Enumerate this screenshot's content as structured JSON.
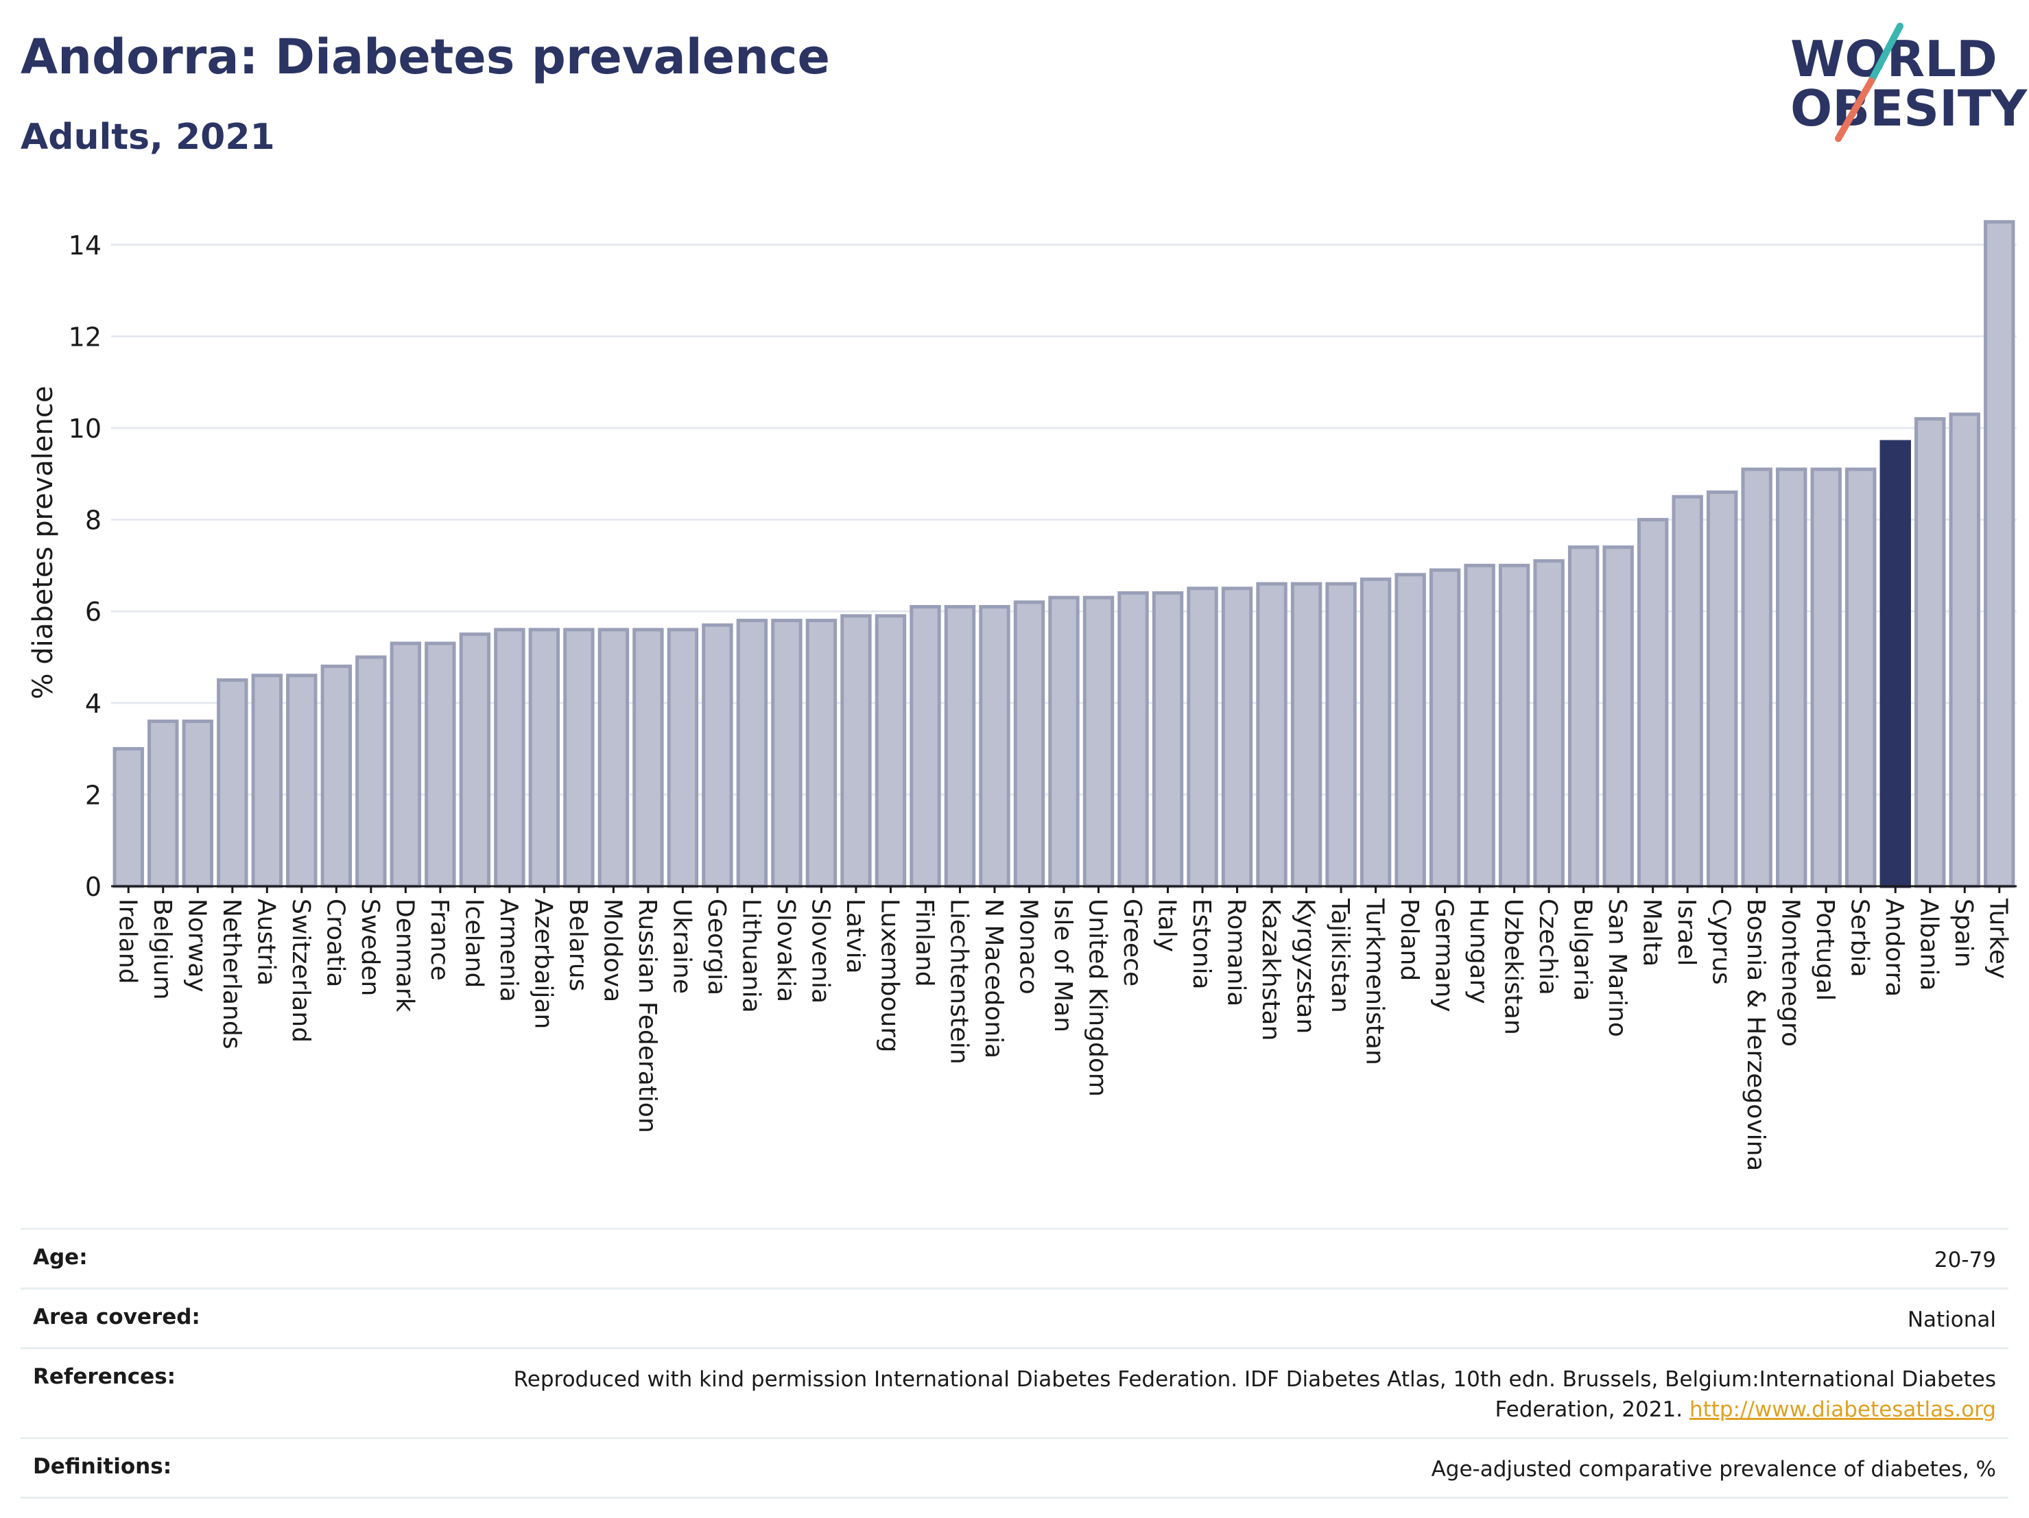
{
  "header": {
    "title": "Andorra: Diabetes prevalence",
    "subtitle": "Adults, 2021"
  },
  "logo": {
    "line1": "WORLD",
    "line2": "OBESITY",
    "accent_teal": "#3ab5b0",
    "accent_coral": "#e8735a",
    "text_color": "#2b3463"
  },
  "chart_data": {
    "type": "bar",
    "title": "Andorra: Diabetes prevalence",
    "subtitle": "Adults, 2021",
    "ylabel": "% diabetes prevalence",
    "xlabel": "",
    "ylim": [
      0,
      15
    ],
    "yticks": [
      0,
      2,
      4,
      6,
      8,
      10,
      12,
      14
    ],
    "grid": true,
    "highlight": "Andorra",
    "colors": {
      "bar": "#bcc0d0",
      "bar_edge": "#9a9fb8",
      "highlight": "#2b3463",
      "grid": "#e6e8ef"
    },
    "categories": [
      "Ireland",
      "Belgium",
      "Norway",
      "Netherlands",
      "Austria",
      "Switzerland",
      "Croatia",
      "Sweden",
      "Denmark",
      "France",
      "Iceland",
      "Armenia",
      "Azerbaijan",
      "Belarus",
      "Moldova",
      "Russian Federation",
      "Ukraine",
      "Georgia",
      "Lithuania",
      "Slovakia",
      "Slovenia",
      "Latvia",
      "Luxembourg",
      "Finland",
      "Liechtenstein",
      "N Macedonia",
      "Monaco",
      "Isle of Man",
      "United Kingdom",
      "Greece",
      "Italy",
      "Estonia",
      "Romania",
      "Kazakhstan",
      "Kyrgyzstan",
      "Tajikistan",
      "Turkmenistan",
      "Poland",
      "Germany",
      "Hungary",
      "Uzbekistan",
      "Czechia",
      "Bulgaria",
      "San Marino",
      "Malta",
      "Israel",
      "Cyprus",
      "Bosnia & Herzegovina",
      "Montenegro",
      "Portugal",
      "Serbia",
      "Andorra",
      "Albania",
      "Spain",
      "Turkey"
    ],
    "values": [
      3.0,
      3.6,
      3.6,
      4.5,
      4.6,
      4.6,
      4.8,
      5.0,
      5.3,
      5.3,
      5.5,
      5.6,
      5.6,
      5.6,
      5.6,
      5.6,
      5.6,
      5.7,
      5.8,
      5.8,
      5.8,
      5.9,
      5.9,
      6.1,
      6.1,
      6.1,
      6.2,
      6.3,
      6.3,
      6.4,
      6.4,
      6.5,
      6.5,
      6.6,
      6.6,
      6.6,
      6.7,
      6.8,
      6.9,
      7.0,
      7.0,
      7.1,
      7.4,
      7.4,
      8.0,
      8.5,
      8.6,
      9.1,
      9.1,
      9.1,
      9.1,
      9.7,
      10.2,
      10.3,
      14.5
    ]
  },
  "meta": [
    {
      "label": "Age:",
      "value": "20-79"
    },
    {
      "label": "Area covered:",
      "value": "National"
    },
    {
      "label": "References:",
      "value": "Reproduced with kind permission International Diabetes Federation.  IDF Diabetes Atlas, 10th edn. Brussels, Belgium:International Diabetes Federation, 2021.",
      "link": "http://www.diabetesatlas.org"
    },
    {
      "label": "Definitions:",
      "value": "Age-adjusted comparative prevalence of diabetes, %"
    }
  ]
}
